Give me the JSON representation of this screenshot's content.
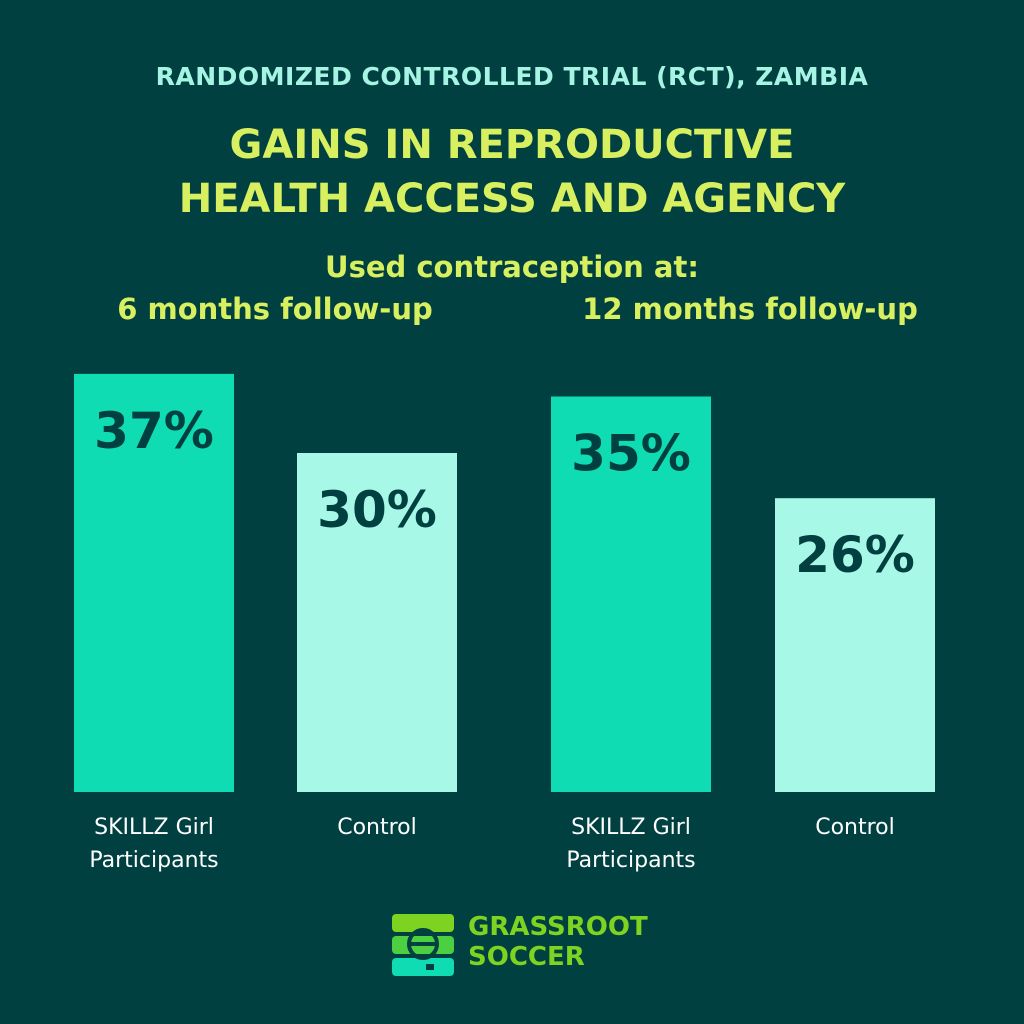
{
  "subtitle": "RANDOMIZED CONTROLLED TRIAL (RCT), ZAMBIA",
  "title_line1": "GAINS IN REPRODUCTIVE",
  "title_line2": "HEALTH ACCESS AND AGENCY",
  "metric_label": "Used contraception at:",
  "periods": [
    "6 months follow-up",
    "12 months follow-up"
  ],
  "colors": {
    "background": "#004040",
    "skillz": "#10dcb4",
    "control": "#a8f8e8",
    "value_text": "#004040",
    "heading": "#d8f060",
    "subheading": "#a6f5e4",
    "logo_green": "#7ed321"
  },
  "chart_data": {
    "type": "bar",
    "panels": [
      {
        "title": "6 months follow-up",
        "categories": [
          "SKILLZ Girl Participants",
          "Control"
        ],
        "values": [
          37,
          30
        ],
        "labels": [
          "37%",
          "30%"
        ]
      },
      {
        "title": "12 months follow-up",
        "categories": [
          "SKILLZ Girl Participants",
          "Control"
        ],
        "values": [
          35,
          26
        ],
        "labels": [
          "35%",
          "26%"
        ]
      }
    ],
    "category_label_lines": [
      [
        "SKILLZ Girl",
        "Participants"
      ],
      [
        "Control"
      ],
      [
        "SKILLZ Girl",
        "Participants"
      ],
      [
        "Control"
      ]
    ],
    "unit": "%",
    "grid": false,
    "legend": "none"
  },
  "logo": {
    "line1": "GRASSROOT",
    "line2": "SOCCER",
    "icon": "soccer-ball-stack-icon"
  }
}
